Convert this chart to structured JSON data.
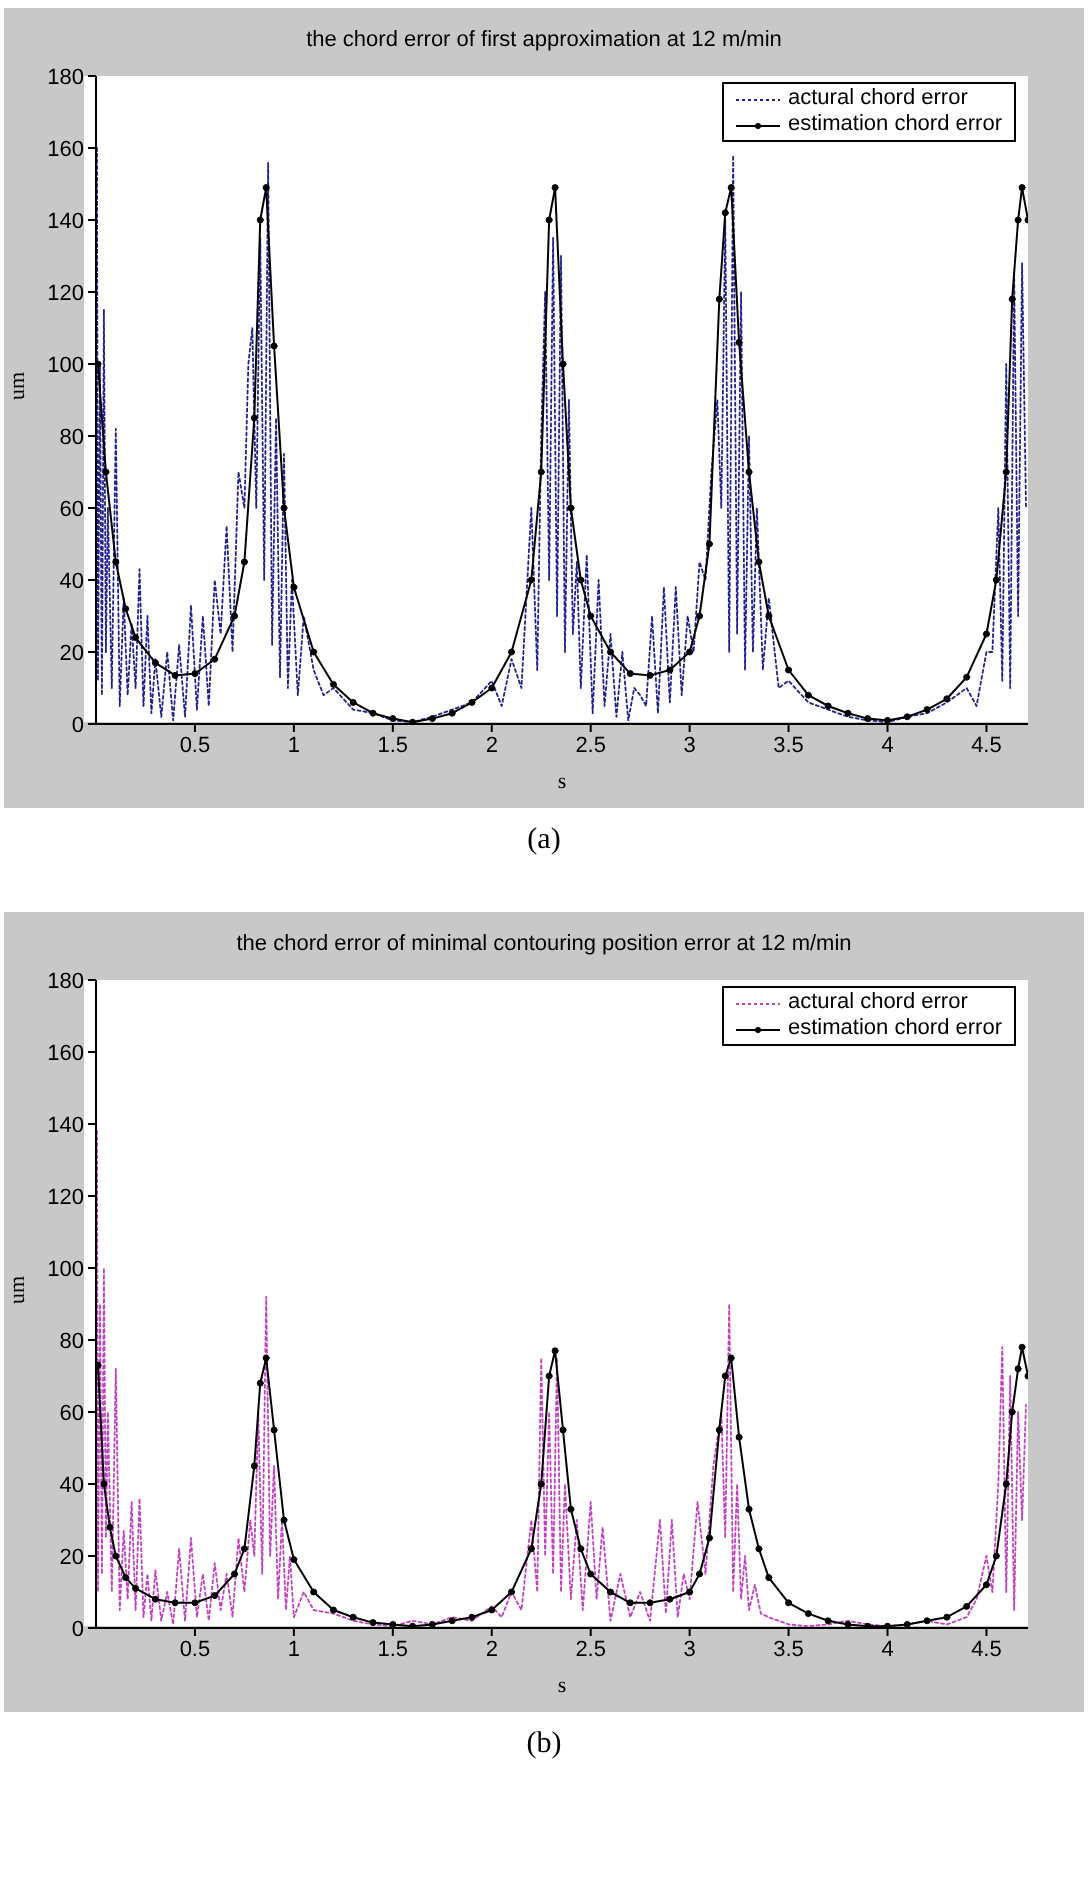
{
  "chart_data": [
    {
      "type": "line",
      "title": "the chord error of first approximation at 12 m/min",
      "xlabel": "s",
      "ylabel": "um",
      "xlim": [
        0,
        4.71
      ],
      "xticks": [
        0.5,
        1,
        1.5,
        2,
        2.5,
        3,
        3.5,
        4,
        4.5
      ],
      "ylim": [
        0,
        180
      ],
      "yticks": [
        0,
        20,
        40,
        60,
        80,
        100,
        120,
        140,
        160,
        180
      ],
      "legend": "top right",
      "annotations": [
        "(a)"
      ],
      "series": [
        {
          "name": "actural chord error",
          "color": "#1f1f8f",
          "line_style": "dotted",
          "marker": "none",
          "x": [
            0.005,
            0.01,
            0.02,
            0.03,
            0.04,
            0.05,
            0.06,
            0.08,
            0.1,
            0.12,
            0.14,
            0.16,
            0.18,
            0.2,
            0.22,
            0.24,
            0.26,
            0.28,
            0.3,
            0.33,
            0.36,
            0.39,
            0.42,
            0.45,
            0.48,
            0.51,
            0.54,
            0.57,
            0.6,
            0.63,
            0.66,
            0.69,
            0.72,
            0.75,
            0.77,
            0.79,
            0.81,
            0.83,
            0.85,
            0.87,
            0.89,
            0.91,
            0.93,
            0.95,
            0.97,
            0.99,
            1.02,
            1.05,
            1.1,
            1.15,
            1.2,
            1.3,
            1.4,
            1.5,
            1.6,
            1.7,
            1.8,
            1.9,
            2.0,
            2.05,
            2.1,
            2.15,
            2.2,
            2.23,
            2.25,
            2.27,
            2.29,
            2.31,
            2.33,
            2.35,
            2.37,
            2.39,
            2.41,
            2.43,
            2.45,
            2.48,
            2.51,
            2.54,
            2.57,
            2.6,
            2.63,
            2.66,
            2.69,
            2.72,
            2.75,
            2.78,
            2.81,
            2.84,
            2.87,
            2.9,
            2.93,
            2.96,
            2.99,
            3.02,
            3.05,
            3.08,
            3.11,
            3.14,
            3.16,
            3.18,
            3.2,
            3.22,
            3.24,
            3.26,
            3.28,
            3.3,
            3.32,
            3.34,
            3.37,
            3.4,
            3.45,
            3.5,
            3.6,
            3.7,
            3.8,
            3.9,
            4.0,
            4.1,
            4.2,
            4.3,
            4.4,
            4.45,
            4.5,
            4.53,
            4.56,
            4.58,
            4.6,
            4.62,
            4.64,
            4.66,
            4.68,
            4.7
          ],
          "values": [
            160,
            12,
            100,
            8,
            115,
            20,
            60,
            10,
            82,
            5,
            35,
            8,
            28,
            10,
            43,
            5,
            30,
            3,
            18,
            2,
            20,
            1,
            22,
            2,
            33,
            4,
            30,
            5,
            40,
            25,
            55,
            20,
            70,
            60,
            100,
            110,
            60,
            135,
            40,
            156,
            22,
            85,
            13,
            75,
            10,
            40,
            8,
            30,
            15,
            8,
            10,
            4,
            3,
            1,
            0.5,
            2,
            4,
            6,
            12,
            5,
            18,
            10,
            60,
            15,
            80,
            120,
            40,
            135,
            30,
            130,
            20,
            90,
            25,
            45,
            10,
            47,
            3,
            40,
            5,
            25,
            2,
            20,
            1,
            10,
            8,
            5,
            30,
            3,
            38,
            6,
            38,
            8,
            30,
            20,
            45,
            40,
            70,
            90,
            60,
            140,
            20,
            158,
            25,
            120,
            15,
            80,
            20,
            60,
            15,
            35,
            10,
            12,
            6,
            4,
            2,
            1,
            0.5,
            2,
            3,
            6,
            10,
            5,
            20,
            20,
            60,
            12,
            100,
            10,
            125,
            30,
            128,
            60
          ]
        },
        {
          "name": "estimation chord error",
          "color": "#000000",
          "line_style": "solid",
          "marker": "circle",
          "x": [
            0.01,
            0.05,
            0.1,
            0.15,
            0.2,
            0.3,
            0.4,
            0.5,
            0.6,
            0.7,
            0.75,
            0.8,
            0.83,
            0.86,
            0.9,
            0.95,
            1.0,
            1.1,
            1.2,
            1.3,
            1.4,
            1.5,
            1.6,
            1.7,
            1.8,
            1.9,
            2.0,
            2.1,
            2.2,
            2.25,
            2.29,
            2.32,
            2.36,
            2.4,
            2.45,
            2.5,
            2.6,
            2.7,
            2.8,
            2.9,
            3.0,
            3.05,
            3.1,
            3.15,
            3.18,
            3.21,
            3.25,
            3.3,
            3.35,
            3.4,
            3.5,
            3.6,
            3.7,
            3.8,
            3.9,
            4.0,
            4.1,
            4.2,
            4.3,
            4.4,
            4.5,
            4.55,
            4.6,
            4.63,
            4.66,
            4.68,
            4.71
          ],
          "values": [
            100,
            70,
            45,
            32,
            24,
            17,
            13.5,
            14,
            18,
            30,
            45,
            85,
            140,
            149,
            105,
            60,
            38,
            20,
            11,
            6,
            3,
            1.5,
            0.5,
            1.5,
            3,
            6,
            10,
            20,
            40,
            70,
            140,
            149,
            100,
            60,
            40,
            30,
            20,
            14,
            13.5,
            15,
            20,
            30,
            50,
            118,
            142,
            149,
            106,
            70,
            45,
            30,
            15,
            8,
            5,
            3,
            1.5,
            1,
            2,
            4,
            7,
            13,
            25,
            40,
            70,
            118,
            140,
            149,
            140
          ]
        }
      ]
    },
    {
      "type": "line",
      "title": "the chord error of minimal contouring position error at 12 m/min",
      "xlabel": "s",
      "ylabel": "um",
      "xlim": [
        0,
        4.71
      ],
      "xticks": [
        0.5,
        1,
        1.5,
        2,
        2.5,
        3,
        3.5,
        4,
        4.5
      ],
      "ylim": [
        0,
        180
      ],
      "yticks": [
        0,
        20,
        40,
        60,
        80,
        100,
        120,
        140,
        160,
        180
      ],
      "legend": "top right",
      "annotations": [
        "(b)"
      ],
      "series": [
        {
          "name": "actural chord error",
          "color": "#c040c0",
          "line_style": "dotted",
          "marker": "none",
          "x": [
            0.005,
            0.01,
            0.02,
            0.03,
            0.04,
            0.05,
            0.06,
            0.08,
            0.1,
            0.12,
            0.14,
            0.16,
            0.18,
            0.2,
            0.22,
            0.24,
            0.26,
            0.28,
            0.3,
            0.33,
            0.36,
            0.39,
            0.42,
            0.45,
            0.48,
            0.51,
            0.54,
            0.57,
            0.6,
            0.63,
            0.66,
            0.69,
            0.72,
            0.75,
            0.78,
            0.8,
            0.82,
            0.84,
            0.86,
            0.88,
            0.9,
            0.92,
            0.94,
            0.96,
            0.98,
            1.0,
            1.05,
            1.1,
            1.2,
            1.3,
            1.4,
            1.5,
            1.6,
            1.7,
            1.8,
            1.9,
            2.0,
            2.05,
            2.1,
            2.15,
            2.2,
            2.23,
            2.25,
            2.27,
            2.29,
            2.31,
            2.33,
            2.35,
            2.37,
            2.4,
            2.43,
            2.46,
            2.5,
            2.53,
            2.56,
            2.6,
            2.65,
            2.7,
            2.75,
            2.8,
            2.85,
            2.88,
            2.91,
            2.94,
            2.97,
            3.0,
            3.04,
            3.08,
            3.12,
            3.16,
            3.18,
            3.2,
            3.22,
            3.24,
            3.26,
            3.28,
            3.3,
            3.33,
            3.36,
            3.4,
            3.45,
            3.5,
            3.6,
            3.7,
            3.8,
            3.9,
            4.0,
            4.1,
            4.2,
            4.3,
            4.4,
            4.45,
            4.5,
            4.53,
            4.56,
            4.58,
            4.6,
            4.62,
            4.64,
            4.66,
            4.68,
            4.7
          ],
          "values": [
            138,
            10,
            90,
            15,
            100,
            25,
            60,
            10,
            72,
            5,
            27,
            8,
            35,
            5,
            36,
            3,
            15,
            2,
            16,
            2,
            10,
            1,
            22,
            2,
            25,
            3,
            15,
            2,
            18,
            5,
            15,
            3,
            25,
            10,
            30,
            20,
            60,
            15,
            92,
            20,
            45,
            8,
            30,
            5,
            20,
            3,
            10,
            5,
            4,
            2,
            1,
            0.5,
            2,
            1,
            3,
            2,
            6,
            3,
            10,
            5,
            30,
            10,
            75,
            20,
            60,
            15,
            75,
            10,
            40,
            8,
            30,
            5,
            35,
            8,
            28,
            2,
            15,
            3,
            10,
            2,
            30,
            4,
            30,
            3,
            15,
            8,
            35,
            15,
            45,
            60,
            25,
            90,
            10,
            40,
            8,
            20,
            5,
            12,
            4,
            3,
            2,
            1,
            0.5,
            1,
            2,
            1,
            0.5,
            1,
            2,
            1,
            3,
            8,
            20,
            10,
            40,
            78,
            10,
            70,
            5,
            60,
            30,
            62
          ]
        },
        {
          "name": "estimation chord error",
          "color": "#000000",
          "line_style": "solid",
          "marker": "circle",
          "x": [
            0.01,
            0.04,
            0.07,
            0.1,
            0.15,
            0.2,
            0.3,
            0.4,
            0.5,
            0.6,
            0.7,
            0.75,
            0.8,
            0.83,
            0.86,
            0.9,
            0.95,
            1.0,
            1.1,
            1.2,
            1.3,
            1.4,
            1.5,
            1.6,
            1.7,
            1.8,
            1.9,
            2.0,
            2.1,
            2.2,
            2.25,
            2.29,
            2.32,
            2.36,
            2.4,
            2.45,
            2.5,
            2.6,
            2.7,
            2.8,
            2.9,
            3.0,
            3.05,
            3.1,
            3.15,
            3.18,
            3.21,
            3.25,
            3.3,
            3.35,
            3.4,
            3.5,
            3.6,
            3.7,
            3.8,
            3.9,
            4.0,
            4.1,
            4.2,
            4.3,
            4.4,
            4.5,
            4.55,
            4.6,
            4.63,
            4.66,
            4.68,
            4.71
          ],
          "values": [
            73,
            40,
            28,
            20,
            14,
            11,
            8,
            7,
            7,
            9,
            15,
            22,
            45,
            68,
            75,
            55,
            30,
            19,
            10,
            5,
            3,
            1.5,
            1,
            0.5,
            1,
            2,
            3,
            5,
            10,
            22,
            40,
            70,
            77,
            55,
            33,
            22,
            15,
            10,
            7,
            7,
            8,
            10,
            15,
            25,
            55,
            70,
            75,
            53,
            33,
            22,
            14,
            7,
            4,
            2,
            1,
            0.5,
            0.5,
            1,
            2,
            3,
            6,
            12,
            20,
            40,
            60,
            72,
            78,
            70
          ]
        }
      ]
    }
  ]
}
